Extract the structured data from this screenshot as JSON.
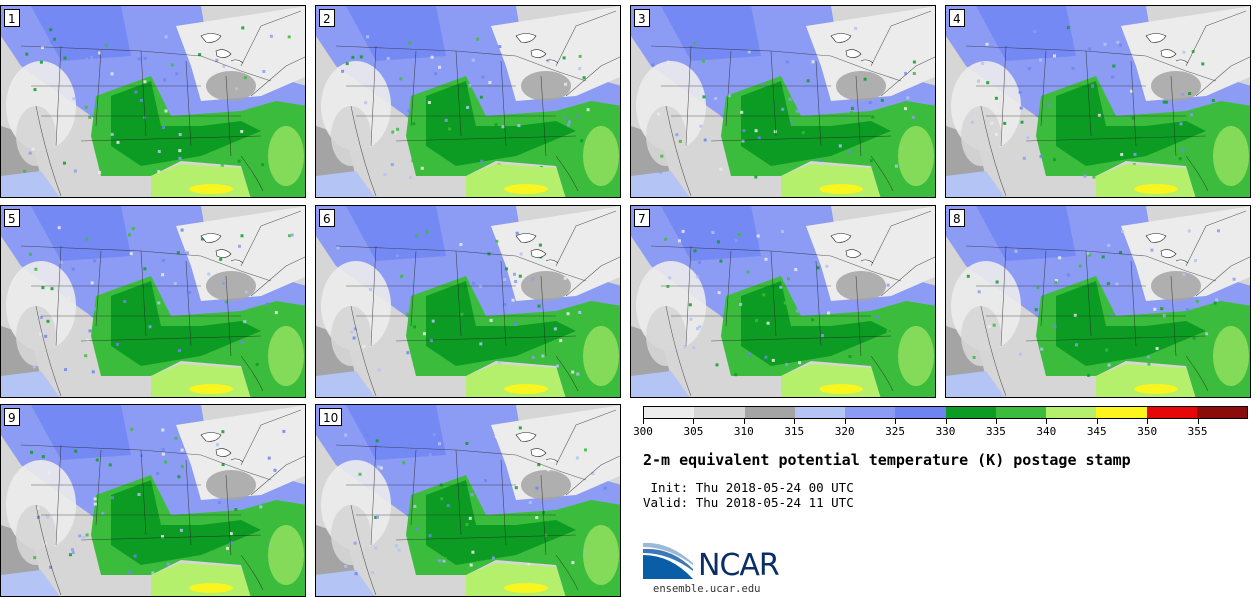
{
  "figure": {
    "title": "2-m equivalent potential temperature (K) postage stamp",
    "init_label": " Init:",
    "init_value": "Thu 2018-05-24 00 UTC",
    "valid_label": "Valid:",
    "valid_value": "Thu 2018-05-24 11 UTC"
  },
  "panels": [
    {
      "member": "1"
    },
    {
      "member": "2"
    },
    {
      "member": "3"
    },
    {
      "member": "4"
    },
    {
      "member": "5"
    },
    {
      "member": "6"
    },
    {
      "member": "7"
    },
    {
      "member": "8"
    },
    {
      "member": "9"
    },
    {
      "member": "10"
    }
  ],
  "colorbar": {
    "unit": "K",
    "ticks": [
      "300",
      "305",
      "310",
      "315",
      "320",
      "325",
      "330",
      "335",
      "340",
      "345",
      "350",
      "355"
    ],
    "colors": [
      "#ececec",
      "#d6d6d6",
      "#a4a4a4",
      "#b4c4f4",
      "#8c9cf4",
      "#6e84f2",
      "#0c9c24",
      "#3cbc3c",
      "#b4f06c",
      "#fcf41c",
      "#e60808",
      "#8c0c0c"
    ]
  },
  "branding": {
    "logo_text": "NCAR",
    "url": "ensemble.ucar.edu"
  }
}
